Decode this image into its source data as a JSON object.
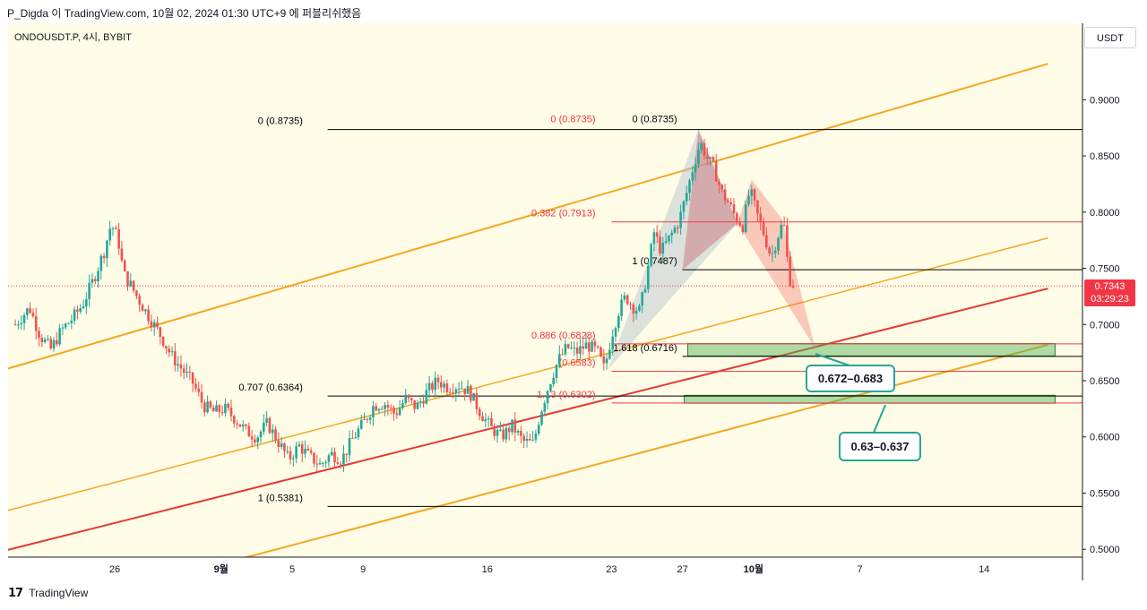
{
  "header": {
    "publish_text": "P_Digda 이 TradingView.com, 10월 02, 2024 01:30 UTC+9 에 퍼블리쉬했음"
  },
  "symbol_label": "ONDOUSDT.P, 4시, BYBIT",
  "currency": "USDT",
  "last_price": {
    "price": "0.7343",
    "countdown": "03:29:23",
    "color": "#f23645"
  },
  "footer": {
    "brand": "TradingView"
  },
  "callouts": {
    "zone1": "0.672–0.683",
    "zone2": "0.63–0.637"
  },
  "chart_data": {
    "type": "candlestick",
    "instrument": "ONDOUSDT.P",
    "timeframe": "4시",
    "exchange": "BYBIT",
    "y_axis": {
      "range": [
        0.493,
        0.968
      ],
      "ticks": [
        "0.9000",
        "0.8500",
        "0.8000",
        "0.7500",
        "0.7000",
        "0.6500",
        "0.6000",
        "0.5500",
        "0.5000"
      ],
      "tick_values": [
        0.9,
        0.85,
        0.8,
        0.75,
        0.7,
        0.65,
        0.6,
        0.55,
        0.5
      ]
    },
    "x_axis": {
      "ticks": [
        {
          "label": "26",
          "day": 0,
          "bold": false
        },
        {
          "label": "9월",
          "day": 6,
          "bold": true
        },
        {
          "label": "5",
          "day": 10,
          "bold": false
        },
        {
          "label": "9",
          "day": 14,
          "bold": false
        },
        {
          "label": "16",
          "day": 21,
          "bold": false
        },
        {
          "label": "23",
          "day": 28,
          "bold": false
        },
        {
          "label": "27",
          "day": 32,
          "bold": false
        },
        {
          "label": "10월",
          "day": 36,
          "bold": true
        },
        {
          "label": "7",
          "day": 42,
          "bold": false
        },
        {
          "label": "14",
          "day": 49,
          "bold": false
        }
      ]
    },
    "price_path": [
      [
        -5.6,
        0.7
      ],
      [
        -4.8,
        0.715
      ],
      [
        -4.2,
        0.69
      ],
      [
        -3.6,
        0.678
      ],
      [
        -3.0,
        0.695
      ],
      [
        -2.4,
        0.705
      ],
      [
        -1.8,
        0.718
      ],
      [
        -1.2,
        0.74
      ],
      [
        -0.6,
        0.765
      ],
      [
        -0.2,
        0.79
      ],
      [
        0.2,
        0.775
      ],
      [
        0.5,
        0.745
      ],
      [
        0.9,
        0.735
      ],
      [
        1.5,
        0.718
      ],
      [
        2.0,
        0.705
      ],
      [
        2.6,
        0.69
      ],
      [
        3.2,
        0.672
      ],
      [
        3.8,
        0.66
      ],
      [
        4.4,
        0.648
      ],
      [
        5.0,
        0.628
      ],
      [
        5.6,
        0.622
      ],
      [
        6.2,
        0.625
      ],
      [
        6.8,
        0.616
      ],
      [
        7.4,
        0.605
      ],
      [
        8.0,
        0.6
      ],
      [
        8.6,
        0.612
      ],
      [
        9.2,
        0.596
      ],
      [
        9.8,
        0.58
      ],
      [
        10.4,
        0.592
      ],
      [
        11.0,
        0.582
      ],
      [
        11.6,
        0.575
      ],
      [
        12.2,
        0.585
      ],
      [
        12.8,
        0.58
      ],
      [
        13.4,
        0.598
      ],
      [
        14.0,
        0.612
      ],
      [
        14.6,
        0.628
      ],
      [
        15.2,
        0.63
      ],
      [
        15.8,
        0.62
      ],
      [
        16.4,
        0.634
      ],
      [
        17.0,
        0.626
      ],
      [
        17.6,
        0.64
      ],
      [
        18.2,
        0.65
      ],
      [
        18.8,
        0.644
      ],
      [
        19.4,
        0.646
      ],
      [
        20.0,
        0.64
      ],
      [
        20.6,
        0.622
      ],
      [
        21.2,
        0.608
      ],
      [
        21.8,
        0.6
      ],
      [
        22.4,
        0.61
      ],
      [
        23.0,
        0.596
      ],
      [
        23.6,
        0.594
      ],
      [
        24.0,
        0.622
      ],
      [
        24.5,
        0.648
      ],
      [
        25.0,
        0.668
      ],
      [
        25.5,
        0.68
      ],
      [
        26.0,
        0.675
      ],
      [
        26.6,
        0.682
      ],
      [
        27.2,
        0.676
      ],
      [
        27.6,
        0.66
      ],
      [
        28.0,
        0.69
      ],
      [
        28.4,
        0.712
      ],
      [
        28.8,
        0.725
      ],
      [
        29.2,
        0.716
      ],
      [
        29.6,
        0.712
      ],
      [
        30.0,
        0.745
      ],
      [
        30.4,
        0.782
      ],
      [
        30.8,
        0.765
      ],
      [
        31.3,
        0.778
      ],
      [
        31.8,
        0.792
      ],
      [
        32.2,
        0.815
      ],
      [
        32.6,
        0.84
      ],
      [
        33.0,
        0.862
      ],
      [
        33.4,
        0.848
      ],
      [
        33.8,
        0.838
      ],
      [
        34.2,
        0.818
      ],
      [
        34.6,
        0.808
      ],
      [
        35.0,
        0.795
      ],
      [
        35.4,
        0.788
      ],
      [
        35.8,
        0.82
      ],
      [
        36.2,
        0.798
      ],
      [
        36.6,
        0.78
      ],
      [
        37.0,
        0.76
      ],
      [
        37.4,
        0.78
      ],
      [
        37.7,
        0.792
      ],
      [
        38.0,
        0.742
      ],
      [
        38.3,
        0.734
      ]
    ],
    "horizontal_levels": [
      {
        "price": 0.8735,
        "label": "0 (0.8735)",
        "x_from": 12.0,
        "color": "#000000",
        "label_x_day": 10.6
      },
      {
        "price": 0.6364,
        "label": "0.707 (0.6364)",
        "x_from": 12.0,
        "color": "#000000",
        "label_x_day": 10.6
      },
      {
        "price": 0.5381,
        "label": "1 (0.5381)",
        "x_from": 12.0,
        "color": "#000000",
        "label_x_day": 10.6
      },
      {
        "price": 0.7913,
        "label": "0.382 (0.7913)",
        "x_from": 28.0,
        "color": "#f23645",
        "label_x_day": 27.1
      },
      {
        "price": 0.7487,
        "label": "1 (0.7487)",
        "x_from": 32.0,
        "color": "#000000",
        "label_x_day": 31.7
      },
      {
        "price": 0.6828,
        "label": "0.886 (0.6828)",
        "x_from": 28.0,
        "color": "#f23645",
        "label_x_day": 27.1
      },
      {
        "price": 0.6716,
        "label": "1.618 (0.6716)",
        "x_from": 32.0,
        "color": "#000000",
        "label_x_day": 31.7
      },
      {
        "price": 0.6583,
        "label": "(0.6583)",
        "x_from": 28.0,
        "color": "#f23645",
        "label_x_day": 27.1
      },
      {
        "price": 0.6302,
        "label": "1.13 (0.6302)",
        "x_from": 28.0,
        "color": "#f23645",
        "label_x_day": 27.1
      }
    ],
    "top_labels": [
      {
        "price": 0.8735,
        "label": "0 (0.8735)",
        "color": "#f23645",
        "x_day": 27.1
      },
      {
        "price": 0.8735,
        "label": "0 (0.8735)",
        "color": "#000000",
        "x_day": 31.7
      }
    ],
    "channel_lines": [
      {
        "color": "#f5a623",
        "width": 2,
        "points": [
          [
            -6.4,
            0.659
          ],
          [
            52.6,
            0.932
          ]
        ]
      },
      {
        "color": "#f5a623",
        "width": 1.5,
        "points": [
          [
            -6.4,
            0.533
          ],
          [
            52.6,
            0.777
          ]
        ]
      },
      {
        "color": "#f5a623",
        "width": 2,
        "points": [
          [
            -6.4,
            0.435
          ],
          [
            52.6,
            0.682
          ]
        ]
      },
      {
        "color": "#e53935",
        "width": 2,
        "points": [
          [
            -6.4,
            0.498
          ],
          [
            52.6,
            0.732
          ]
        ]
      }
    ],
    "harmonic_patterns": [
      {
        "fill": "rgba(178,190,205,0.45)",
        "points": [
          [
            27.8,
            0.66
          ],
          [
            32.9,
            0.8735
          ],
          [
            35.1,
            0.79
          ],
          [
            27.8,
            0.66
          ]
        ]
      },
      {
        "fill": "rgba(178,190,205,0.45)",
        "points": [
          [
            32.9,
            0.8735
          ],
          [
            35.1,
            0.79
          ],
          [
            32.0,
            0.7487
          ]
        ]
      },
      {
        "fill": "rgba(239,83,80,0.30)",
        "points": [
          [
            32.9,
            0.8735
          ],
          [
            32.0,
            0.7487
          ],
          [
            35.1,
            0.79
          ]
        ]
      },
      {
        "fill": "rgba(239,83,80,0.30)",
        "points": [
          [
            35.1,
            0.79
          ],
          [
            35.9,
            0.829
          ],
          [
            37.6,
            0.794
          ],
          [
            39.5,
            0.678
          ]
        ]
      }
    ],
    "zones": [
      {
        "low": 0.672,
        "high": 0.683,
        "x_from": 32.3,
        "x_to": 53.0,
        "fill": "rgba(76,175,80,0.45)",
        "border": "#2e7d32"
      },
      {
        "low": 0.63,
        "high": 0.637,
        "x_from": 32.1,
        "x_to": 53.0,
        "fill": "rgba(76,175,80,0.45)",
        "border": "#2e7d32"
      }
    ],
    "current_price": 0.7343
  }
}
